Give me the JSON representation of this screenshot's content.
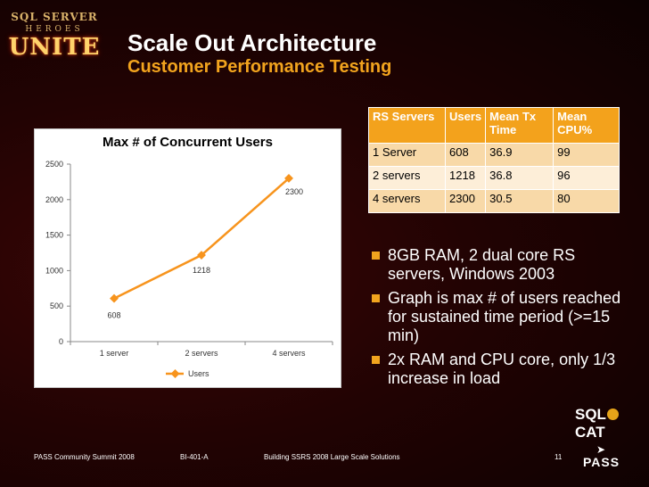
{
  "logo": {
    "line1": "SQL SERVER",
    "line2": "HEROES",
    "line3": "UNITE"
  },
  "title": "Scale Out Architecture",
  "subtitle": "Customer Performance Testing",
  "chart_data": {
    "type": "line",
    "title": "Max # of Concurrent Users",
    "categories": [
      "1 server",
      "2 servers",
      "4 servers"
    ],
    "series": [
      {
        "name": "Users",
        "values": [
          608,
          1218,
          2300
        ],
        "color": "#f7941d"
      }
    ],
    "data_labels": [
      "608",
      "1218",
      "2300"
    ],
    "ylim": [
      0,
      2500
    ],
    "yticks": [
      "0",
      "500",
      "1000",
      "1500",
      "2000",
      "2500"
    ],
    "grid": false,
    "legend": "bottom"
  },
  "table": {
    "headers": [
      "RS Servers",
      "Users",
      "Mean Tx Time",
      "Mean CPU%"
    ],
    "rows": [
      [
        "1 Server",
        "608",
        "36.9",
        "99"
      ],
      [
        "2 servers",
        "1218",
        "36.8",
        "96"
      ],
      [
        "4 servers",
        "2300",
        "30.5",
        "80"
      ]
    ]
  },
  "bullets": [
    "8GB RAM, 2 dual core RS servers, Windows 2003",
    "Graph is max # of users reached for sustained time period (>=15 min)",
    "2x RAM and CPU core, only 1/3 increase in load"
  ],
  "sqlcat": {
    "left": "SQL",
    "right": "CAT"
  },
  "footer": {
    "event": "PASS Community Summit 2008",
    "session": "BI-401-A",
    "talk": "Building SSRS 2008 Large Scale Solutions",
    "page": "11"
  },
  "pass_logo": "PASS",
  "colors": {
    "accent": "#f2a41e",
    "line": "#f7941d",
    "table_header": "#f3a21c"
  }
}
